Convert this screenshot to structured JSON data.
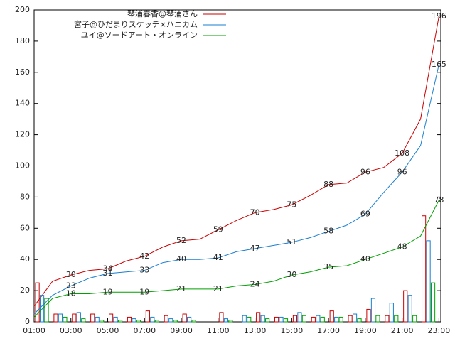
{
  "chart_data": {
    "type": "line",
    "x": [
      1,
      2,
      3,
      4,
      5,
      6,
      7,
      8,
      9,
      10,
      11,
      12,
      13,
      14,
      15,
      16,
      17,
      18,
      19,
      20,
      21,
      22,
      23
    ],
    "bar_x": [
      1,
      2,
      3,
      4,
      5,
      6,
      7,
      8,
      9,
      10,
      11,
      12,
      13,
      14,
      15,
      16,
      17,
      18,
      19,
      20,
      21,
      22
    ],
    "series": [
      {
        "name": "琴浦春香@琴浦さん",
        "color": "#cc0000",
        "values": [
          10,
          26,
          30,
          33,
          34,
          39,
          42,
          48,
          52,
          53,
          59,
          65,
          70,
          72,
          75,
          81,
          88,
          89,
          96,
          99,
          108,
          130,
          196
        ],
        "counts": [
          25,
          5,
          5,
          5,
          5,
          3,
          7,
          4,
          5,
          0,
          6,
          0,
          6,
          3,
          4,
          3,
          7,
          4,
          8,
          4,
          20,
          68
        ]
      },
      {
        "name": "宮子@ひだまりスケッチ×ハニカム",
        "color": "#1a7fd0",
        "values": [
          5,
          17,
          23,
          28,
          31,
          32,
          33,
          38,
          40,
          40,
          41,
          45,
          47,
          49,
          51,
          54,
          58,
          62,
          69,
          83,
          96,
          113,
          165
        ],
        "counts": [
          17,
          5,
          6,
          3,
          3,
          2,
          3,
          2,
          3,
          0,
          2,
          4,
          4,
          3,
          6,
          4,
          3,
          5,
          15,
          12,
          17,
          52
        ]
      },
      {
        "name": "ユイ@ソードアート・オンライン",
        "color": "#00a000",
        "values": [
          3,
          15,
          18,
          18,
          19,
          19,
          19,
          20,
          21,
          21,
          21,
          23,
          24,
          26,
          30,
          32,
          35,
          36,
          40,
          44,
          48,
          55,
          78
        ],
        "counts": [
          15,
          3,
          2,
          1,
          1,
          1,
          1,
          1,
          1,
          0,
          1,
          3,
          2,
          2,
          4,
          3,
          3,
          2,
          4,
          4,
          4,
          25
        ]
      }
    ],
    "xlim": [
      1,
      23.1
    ],
    "xticks": [
      {
        "value": 1,
        "label": "01:00"
      },
      {
        "value": 3,
        "label": "03:00"
      },
      {
        "value": 5,
        "label": "05:00"
      },
      {
        "value": 7,
        "label": "07:00"
      },
      {
        "value": 9,
        "label": "09:00"
      },
      {
        "value": 11,
        "label": "11:00"
      },
      {
        "value": 13,
        "label": "13:00"
      },
      {
        "value": 15,
        "label": "15:00"
      },
      {
        "value": 17,
        "label": "17:00"
      },
      {
        "value": 19,
        "label": "19:00"
      },
      {
        "value": 21,
        "label": "21:00"
      },
      {
        "value": 23,
        "label": "23:00"
      }
    ],
    "ylim": [
      0,
      200
    ],
    "yticks": [
      0,
      20,
      40,
      60,
      80,
      100,
      120,
      140,
      160,
      180,
      200
    ]
  }
}
